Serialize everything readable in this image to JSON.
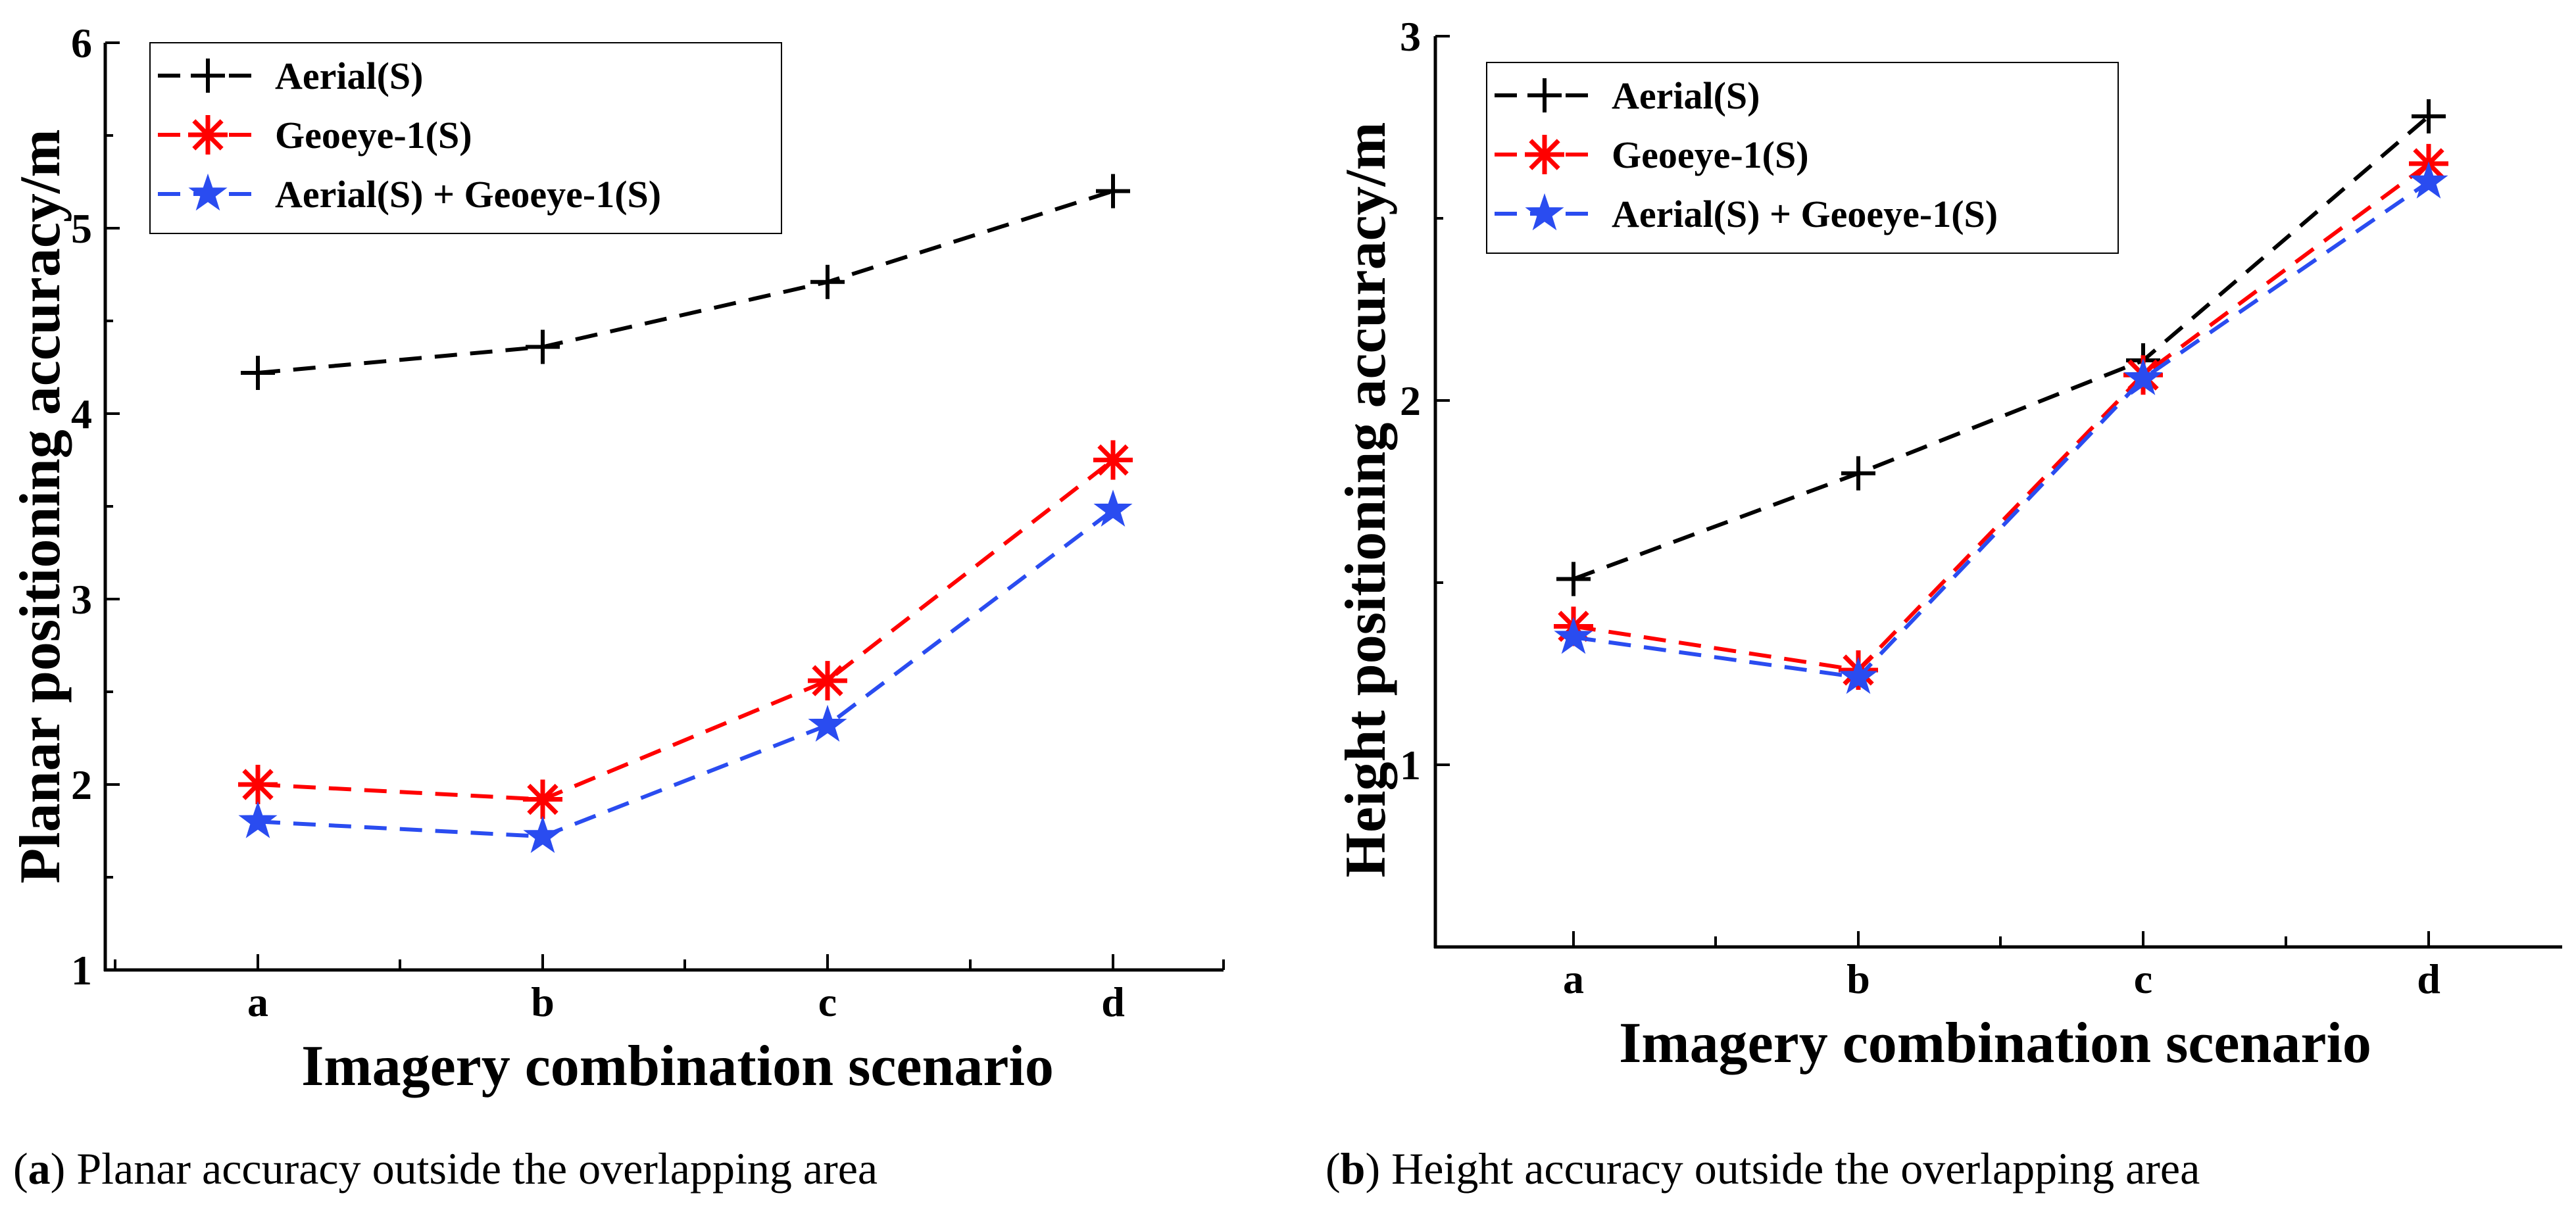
{
  "chart_data": [
    {
      "type": "line",
      "categories": [
        "a",
        "b",
        "c",
        "d"
      ],
      "ylabel": "Planar positioning accuracy/m",
      "xlabel": "Imagery combination scenario",
      "ylim": [
        1,
        6
      ],
      "yticks": [
        "1",
        "2",
        "3",
        "4",
        "5",
        "6"
      ],
      "legend_position": "top-left",
      "caption_letter": "a",
      "caption_text": "Planar accuracy outside the overlapping area",
      "series": [
        {
          "name": "Aerial(S)",
          "color": "#000000",
          "marker": "plus",
          "values": [
            4.22,
            4.36,
            4.71,
            5.2
          ]
        },
        {
          "name": "Geoeye-1(S)",
          "color": "#ff0000",
          "marker": "asterisk",
          "values": [
            2.0,
            1.92,
            2.56,
            3.75
          ]
        },
        {
          "name": "Aerial(S) + Geoeye-1(S)",
          "color": "#2a4cf0",
          "marker": "star",
          "values": [
            1.8,
            1.72,
            2.32,
            3.48
          ]
        }
      ]
    },
    {
      "type": "line",
      "categories": [
        "a",
        "b",
        "c",
        "d"
      ],
      "ylabel": "Height positioning accuracy/m",
      "xlabel": "Imagery combination scenario",
      "ylim": [
        0.5,
        3
      ],
      "yticks": [
        "1",
        "2",
        "3"
      ],
      "legend_position": "top-left",
      "caption_letter": "b",
      "caption_text": "Height accuracy outside the overlapping area",
      "series": [
        {
          "name": "Aerial(S)",
          "color": "#000000",
          "marker": "plus",
          "values": [
            1.51,
            1.8,
            2.11,
            2.78
          ]
        },
        {
          "name": "Geoeye-1(S)",
          "color": "#ff0000",
          "marker": "asterisk",
          "values": [
            1.38,
            1.26,
            2.07,
            2.65
          ]
        },
        {
          "name": "Aerial(S) + Geoeye-1(S)",
          "color": "#2a4cf0",
          "marker": "star",
          "values": [
            1.35,
            1.24,
            2.06,
            2.6
          ]
        }
      ]
    }
  ]
}
